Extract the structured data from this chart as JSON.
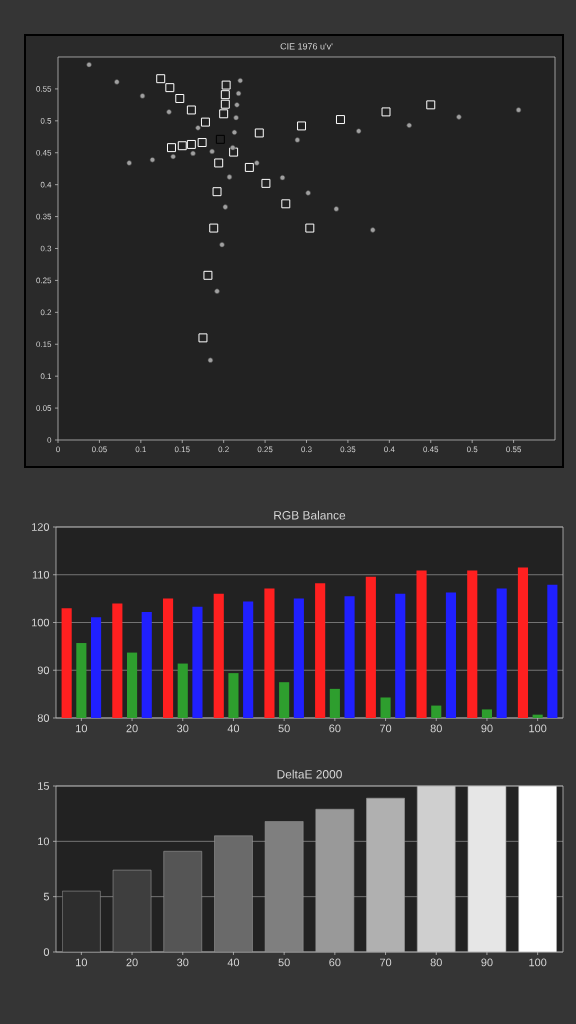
{
  "chart_data": [
    {
      "type": "scatter",
      "title": "CIE 1976 u'v'",
      "xlim": [
        0,
        0.6
      ],
      "ylim": [
        0,
        0.6
      ],
      "xticks": [
        0,
        0.05,
        0.1,
        0.15,
        0.2,
        0.25,
        0.3,
        0.35,
        0.4,
        0.45,
        0.5,
        0.55
      ],
      "yticks": [
        0,
        0.05,
        0.1,
        0.15,
        0.2,
        0.25,
        0.3,
        0.35,
        0.4,
        0.45,
        0.5,
        0.55
      ],
      "grid": false,
      "series": [
        {
          "type": "scatter",
          "color": "#ffffff",
          "marker": "square",
          "x": [
            0.124,
            0.135,
            0.147,
            0.161,
            0.178,
            0.203,
            0.202,
            0.202,
            0.2,
            0.243,
            0.294,
            0.341,
            0.396,
            0.45,
            0.137,
            0.15,
            0.161,
            0.174,
            0.212,
            0.194,
            0.231,
            0.251,
            0.275,
            0.304,
            0.192,
            0.188,
            0.181,
            0.175
          ],
          "values": [
            0.566,
            0.552,
            0.535,
            0.517,
            0.498,
            0.556,
            0.541,
            0.526,
            0.511,
            0.481,
            0.492,
            0.502,
            0.514,
            0.525,
            0.458,
            0.461,
            0.463,
            0.466,
            0.451,
            0.434,
            0.427,
            0.402,
            0.37,
            0.332,
            0.389,
            0.332,
            0.258,
            0.16
          ]
        },
        {
          "type": "scatter",
          "color": "#000000",
          "marker": "square",
          "x": [
            0.196
          ],
          "values": [
            0.471
          ]
        },
        {
          "type": "scatter",
          "color": "#a0a0a0",
          "marker": "circle",
          "x": [
            0.0375,
            0.071,
            0.102,
            0.134,
            0.169,
            0.22,
            0.218,
            0.216,
            0.215,
            0.213,
            0.211,
            0.186,
            0.163,
            0.139,
            0.114,
            0.086,
            0.24,
            0.207,
            0.271,
            0.302,
            0.336,
            0.38,
            0.202,
            0.198,
            0.192,
            0.184,
            0.289,
            0.363,
            0.424,
            0.484,
            0.556
          ],
          "values": [
            0.588,
            0.561,
            0.539,
            0.514,
            0.489,
            0.563,
            0.543,
            0.525,
            0.505,
            0.482,
            0.458,
            0.452,
            0.449,
            0.444,
            0.439,
            0.434,
            0.434,
            0.412,
            0.411,
            0.387,
            0.362,
            0.329,
            0.365,
            0.306,
            0.233,
            0.125,
            0.47,
            0.484,
            0.493,
            0.506,
            0.517
          ]
        }
      ]
    },
    {
      "type": "bar",
      "title": "RGB Balance",
      "categories": [
        "10",
        "20",
        "30",
        "40",
        "50",
        "60",
        "70",
        "80",
        "90",
        "100"
      ],
      "ylim": [
        80,
        120
      ],
      "yticks": [
        80,
        90,
        100,
        110,
        120
      ],
      "grid": "y",
      "series": [
        {
          "color": "#ff2020",
          "values": [
            103,
            104,
            105,
            106,
            107.1,
            108.2,
            109.6,
            110.9,
            110.9,
            111.5
          ]
        },
        {
          "color": "#2e9e2e",
          "values": [
            95.7,
            93.7,
            91.4,
            89.4,
            87.5,
            86.1,
            84.3,
            82.6,
            81.8,
            80.7
          ]
        },
        {
          "color": "#2020ff",
          "values": [
            101.1,
            102.2,
            103.3,
            104.4,
            105,
            105.5,
            106,
            106.3,
            107.1,
            107.9
          ]
        }
      ]
    },
    {
      "type": "bar",
      "title": "DeltaE 2000",
      "categories": [
        "10",
        "20",
        "30",
        "40",
        "50",
        "60",
        "70",
        "80",
        "90",
        "100"
      ],
      "ylim": [
        0,
        15
      ],
      "yticks": [
        0,
        5,
        10,
        15
      ],
      "grid": "y",
      "values": [
        5.5,
        7.4,
        9.1,
        10.5,
        11.8,
        12.9,
        13.9,
        15,
        15,
        15
      ],
      "colors": [
        "#2e2e2e",
        "#3e3e3e",
        "#555555",
        "#6a6a6a",
        "#7f7f7f",
        "#999999",
        "#b0b0b0",
        "#cfcfcf",
        "#e6e6e6",
        "#ffffff"
      ]
    }
  ]
}
